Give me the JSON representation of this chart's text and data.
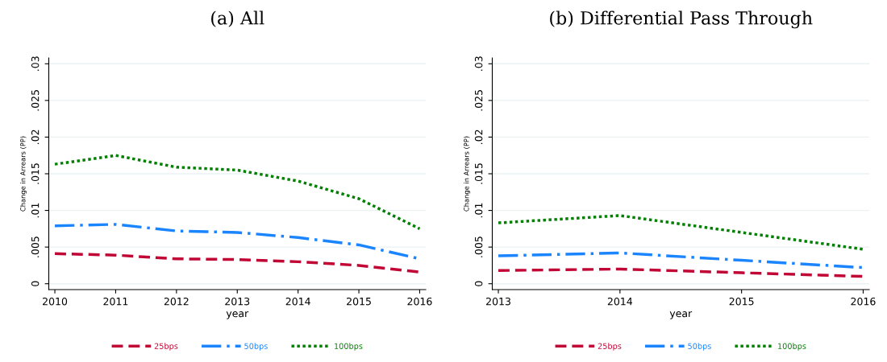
{
  "chart_data": [
    {
      "type": "line",
      "title": "(a) All",
      "xlabel": "year",
      "ylabel": "Change in Arrears (PP)",
      "x": [
        2010,
        2011,
        2012,
        2013,
        2014,
        2015,
        2016
      ],
      "xlim": [
        2009.9,
        2016.1
      ],
      "xticks": [
        2010,
        2011,
        2012,
        2013,
        2014,
        2015,
        2016
      ],
      "ylim": [
        -0.0008,
        0.0308
      ],
      "yticks": [
        {
          "value": 0,
          "label": "0"
        },
        {
          "value": 0.005,
          "label": ".005"
        },
        {
          "value": 0.01,
          "label": ".01"
        },
        {
          "value": 0.015,
          "label": ".015"
        },
        {
          "value": 0.02,
          "label": ".02"
        },
        {
          "value": 0.025,
          "label": ".025"
        },
        {
          "value": 0.03,
          "label": ".03"
        }
      ],
      "grid": "y",
      "legend": "bottom",
      "marker": "none",
      "series": [
        {
          "name": "25bps",
          "color": "#c10534",
          "line_style": "dashed",
          "values": [
            0.0041,
            0.0039,
            0.0034,
            0.0033,
            0.003,
            0.0025,
            0.0016
          ]
        },
        {
          "name": "50bps",
          "color": "#1a85ff",
          "line_style": "dashdot",
          "values": [
            0.0079,
            0.0081,
            0.0072,
            0.007,
            0.0063,
            0.0053,
            0.0034
          ]
        },
        {
          "name": "100bps",
          "color": "#008000",
          "line_style": "dotted",
          "values": [
            0.0163,
            0.0175,
            0.0159,
            0.0155,
            0.014,
            0.0116,
            0.0075
          ]
        }
      ]
    },
    {
      "type": "line",
      "title": "(b) Differential Pass Through",
      "xlabel": "year",
      "ylabel": "Change in Arrears (PP)",
      "x": [
        2013,
        2014,
        2015,
        2016
      ],
      "xlim": [
        2012.95,
        2016.05
      ],
      "xticks": [
        2013,
        2014,
        2015,
        2016
      ],
      "ylim": [
        -0.0008,
        0.0308
      ],
      "yticks": [
        {
          "value": 0,
          "label": "0"
        },
        {
          "value": 0.005,
          "label": ".005"
        },
        {
          "value": 0.01,
          "label": ".01"
        },
        {
          "value": 0.015,
          "label": ".015"
        },
        {
          "value": 0.02,
          "label": ".02"
        },
        {
          "value": 0.025,
          "label": ".025"
        },
        {
          "value": 0.03,
          "label": ".03"
        }
      ],
      "grid": "y",
      "legend": "bottom",
      "marker": "none",
      "series": [
        {
          "name": "25bps",
          "color": "#c10534",
          "line_style": "dashed",
          "values": [
            0.0018,
            0.002,
            0.0015,
            0.001
          ]
        },
        {
          "name": "50bps",
          "color": "#1a85ff",
          "line_style": "dashdot",
          "values": [
            0.0038,
            0.0042,
            0.0032,
            0.0022
          ]
        },
        {
          "name": "100bps",
          "color": "#008000",
          "line_style": "dotted",
          "values": [
            0.0083,
            0.0093,
            0.007,
            0.0047
          ]
        }
      ]
    }
  ]
}
